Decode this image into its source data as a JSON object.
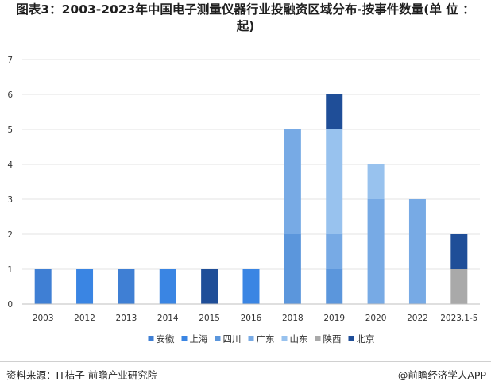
{
  "title": "图表3：2003-2023年中国电子测量仪器行业投融资区域分布-按事件数量(单 位 ：起)",
  "source": "资料来源：IT桔子 前瞻产业研究院",
  "brand": "@前瞻经济学人APP",
  "chart_data": {
    "type": "bar",
    "stacked": true,
    "categories": [
      "2003",
      "2012",
      "2013",
      "2014",
      "2015",
      "2016",
      "2018",
      "2019",
      "2020",
      "2022",
      "2023.1-5"
    ],
    "ylim": [
      0,
      7
    ],
    "yticks": [
      0,
      1,
      2,
      3,
      4,
      5,
      6,
      7
    ],
    "grid": true,
    "legend_position": "bottom",
    "series": [
      {
        "name": "安徽",
        "color": "#3f7fd4",
        "values": [
          1,
          0,
          1,
          0,
          0,
          0,
          0,
          0,
          0,
          0,
          0
        ]
      },
      {
        "name": "上海",
        "color": "#3a85e3",
        "values": [
          0,
          1,
          0,
          1,
          0,
          1,
          0,
          0,
          0,
          0,
          0
        ]
      },
      {
        "name": "四川",
        "color": "#5b96dc",
        "values": [
          0,
          0,
          0,
          0,
          0,
          0,
          2,
          1,
          0,
          0,
          0
        ]
      },
      {
        "name": "广东",
        "color": "#77aae5",
        "values": [
          0,
          0,
          0,
          0,
          0,
          0,
          3,
          1,
          3,
          3,
          0
        ]
      },
      {
        "name": "山东",
        "color": "#98c2ee",
        "values": [
          0,
          0,
          0,
          0,
          0,
          0,
          0,
          3,
          1,
          0,
          0
        ]
      },
      {
        "name": "陕西",
        "color": "#a9a9a9",
        "values": [
          0,
          0,
          0,
          0,
          0,
          0,
          0,
          0,
          0,
          0,
          1
        ]
      },
      {
        "name": "北京",
        "color": "#1f4e98",
        "values": [
          0,
          0,
          0,
          0,
          1,
          0,
          0,
          1,
          0,
          0,
          1
        ]
      }
    ]
  }
}
